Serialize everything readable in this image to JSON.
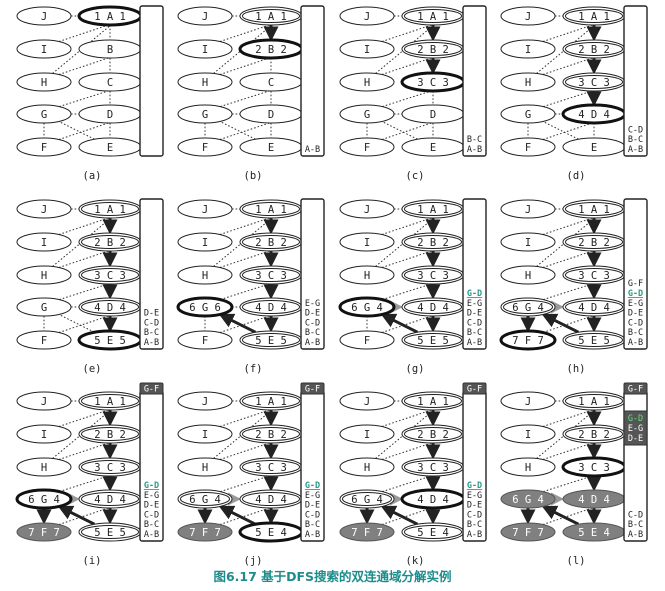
{
  "caption": "图6.17 基于DFS搜索的双连通域分解实例",
  "colors": {
    "accent": "#2b9a8a",
    "gray_fill": "#808080",
    "text": "#222222",
    "caption": "#1e8c8c"
  },
  "node_letters": [
    "J",
    "I",
    "H",
    "G",
    "F",
    "A",
    "B",
    "C",
    "D",
    "E"
  ],
  "panels": [
    {
      "label": "(a)",
      "nodes": {
        "A": "1 A 1"
      },
      "heavy": [
        "A"
      ],
      "double": [],
      "gray": [],
      "tree": [],
      "back": [],
      "stack": [],
      "stack_hi": [],
      "extra": null
    },
    {
      "label": "(b)",
      "nodes": {
        "A": "1 A 1",
        "B": "2 B 2"
      },
      "heavy": [
        "B"
      ],
      "double": [
        "A"
      ],
      "gray": [],
      "tree": [
        [
          "A",
          "B"
        ]
      ],
      "back": [],
      "stack": [
        "A-B"
      ],
      "stack_hi": [],
      "extra": null
    },
    {
      "label": "(c)",
      "nodes": {
        "A": "1 A 1",
        "B": "2 B 2",
        "C": "3 C 3"
      },
      "heavy": [
        "C"
      ],
      "double": [
        "A",
        "B"
      ],
      "gray": [],
      "tree": [
        [
          "A",
          "B"
        ],
        [
          "B",
          "C"
        ]
      ],
      "back": [],
      "stack": [
        "B-C",
        "A-B"
      ],
      "stack_hi": [],
      "extra": null
    },
    {
      "label": "(d)",
      "nodes": {
        "A": "1 A 1",
        "B": "2 B 2",
        "C": "3 C 3",
        "D": "4 D 4"
      },
      "heavy": [
        "D"
      ],
      "double": [
        "A",
        "B",
        "C"
      ],
      "gray": [],
      "tree": [
        [
          "A",
          "B"
        ],
        [
          "B",
          "C"
        ],
        [
          "C",
          "D"
        ]
      ],
      "back": [],
      "stack": [
        "C-D",
        "B-C",
        "A-B"
      ],
      "stack_hi": [],
      "extra": null
    },
    {
      "label": "(e)",
      "nodes": {
        "A": "1 A 1",
        "B": "2 B 2",
        "C": "3 C 3",
        "D": "4 D 4",
        "E": "5 E 5"
      },
      "heavy": [
        "E"
      ],
      "double": [
        "A",
        "B",
        "C",
        "D"
      ],
      "gray": [],
      "tree": [
        [
          "A",
          "B"
        ],
        [
          "B",
          "C"
        ],
        [
          "C",
          "D"
        ],
        [
          "D",
          "E"
        ]
      ],
      "back": [],
      "stack": [
        "D-E",
        "C-D",
        "B-C",
        "A-B"
      ],
      "stack_hi": [],
      "extra": null
    },
    {
      "label": "(f)",
      "nodes": {
        "A": "1 A 1",
        "B": "2 B 2",
        "C": "3 C 3",
        "D": "4 D 4",
        "E": "5 E 5",
        "G": "6 G 6"
      },
      "heavy": [
        "G"
      ],
      "double": [
        "A",
        "B",
        "C",
        "D",
        "E"
      ],
      "gray": [],
      "tree": [
        [
          "A",
          "B"
        ],
        [
          "B",
          "C"
        ],
        [
          "C",
          "D"
        ],
        [
          "D",
          "E"
        ],
        [
          "E",
          "G"
        ]
      ],
      "back": [],
      "stack": [
        "E-G",
        "D-E",
        "C-D",
        "B-C",
        "A-B"
      ],
      "stack_hi": [],
      "extra": null
    },
    {
      "label": "(g)",
      "nodes": {
        "A": "1 A 1",
        "B": "2 B 2",
        "C": "3 C 3",
        "D": "4 D 4",
        "E": "5 E 5",
        "G": "6 G 4"
      },
      "heavy": [
        "G"
      ],
      "double": [
        "A",
        "B",
        "C",
        "D",
        "E"
      ],
      "gray": [],
      "tree": [
        [
          "A",
          "B"
        ],
        [
          "B",
          "C"
        ],
        [
          "C",
          "D"
        ],
        [
          "D",
          "E"
        ],
        [
          "E",
          "G"
        ]
      ],
      "back": [
        [
          "G",
          "D"
        ]
      ],
      "stack": [
        "G-D",
        "E-G",
        "D-E",
        "C-D",
        "B-C",
        "A-B"
      ],
      "stack_hi": [
        "G-D"
      ],
      "extra": null
    },
    {
      "label": "(h)",
      "nodes": {
        "A": "1 A 1",
        "B": "2 B 2",
        "C": "3 C 3",
        "D": "4 D 4",
        "E": "5 E 5",
        "G": "6 G 4",
        "F": "7 F 7"
      },
      "heavy": [
        "F"
      ],
      "double": [
        "A",
        "B",
        "C",
        "D",
        "E",
        "G"
      ],
      "gray": [],
      "tree": [
        [
          "A",
          "B"
        ],
        [
          "B",
          "C"
        ],
        [
          "C",
          "D"
        ],
        [
          "D",
          "E"
        ],
        [
          "E",
          "G"
        ],
        [
          "G",
          "F"
        ]
      ],
      "back": [
        [
          "G",
          "D"
        ]
      ],
      "stack": [
        "G-F",
        "G-D",
        "E-G",
        "D-E",
        "C-D",
        "B-C",
        "A-B"
      ],
      "stack_hi": [
        "G-D"
      ],
      "extra": null
    },
    {
      "label": "(i)",
      "nodes": {
        "A": "1 A 1",
        "B": "2 B 2",
        "C": "3 C 3",
        "D": "4 D 4",
        "E": "5 E 5",
        "G": "6 G 4",
        "F": "7 F 7"
      },
      "heavy": [
        "G"
      ],
      "double": [
        "A",
        "B",
        "C",
        "D",
        "E"
      ],
      "gray": [
        "F"
      ],
      "tree": [
        [
          "A",
          "B"
        ],
        [
          "B",
          "C"
        ],
        [
          "C",
          "D"
        ],
        [
          "D",
          "E"
        ],
        [
          "E",
          "G"
        ],
        [
          "G",
          "F"
        ]
      ],
      "back": [
        [
          "G",
          "D"
        ]
      ],
      "stack": [
        "G-D",
        "E-G",
        "D-E",
        "C-D",
        "B-C",
        "A-B"
      ],
      "stack_hi": [
        "G-D"
      ],
      "extra": [
        "G-F"
      ]
    },
    {
      "label": "(j)",
      "nodes": {
        "A": "1 A 1",
        "B": "2 B 2",
        "C": "3 C 3",
        "D": "4 D 4",
        "E": "5 E 4",
        "G": "6 G 4",
        "F": "7 F 7"
      },
      "heavy": [
        "E"
      ],
      "double": [
        "A",
        "B",
        "C",
        "D",
        "G"
      ],
      "gray": [
        "F"
      ],
      "tree": [
        [
          "A",
          "B"
        ],
        [
          "B",
          "C"
        ],
        [
          "C",
          "D"
        ],
        [
          "D",
          "E"
        ],
        [
          "E",
          "G"
        ],
        [
          "G",
          "F"
        ]
      ],
      "back": [
        [
          "G",
          "D"
        ]
      ],
      "stack": [
        "G-D",
        "E-G",
        "D-E",
        "C-D",
        "B-C",
        "A-B"
      ],
      "stack_hi": [
        "G-D"
      ],
      "extra": [
        "G-F"
      ]
    },
    {
      "label": "(k)",
      "nodes": {
        "A": "1 A 1",
        "B": "2 B 2",
        "C": "3 C 3",
        "D": "4 D 4",
        "E": "5 E 4",
        "G": "6 G 4",
        "F": "7 F 7"
      },
      "heavy": [
        "D"
      ],
      "double": [
        "A",
        "B",
        "C",
        "E",
        "G"
      ],
      "gray": [
        "F"
      ],
      "tree": [
        [
          "A",
          "B"
        ],
        [
          "B",
          "C"
        ],
        [
          "C",
          "D"
        ],
        [
          "D",
          "E"
        ],
        [
          "E",
          "G"
        ],
        [
          "G",
          "F"
        ]
      ],
      "back": [
        [
          "G",
          "D"
        ]
      ],
      "stack": [
        "G-D",
        "E-G",
        "D-E",
        "C-D",
        "B-C",
        "A-B"
      ],
      "stack_hi": [
        "G-D"
      ],
      "extra": [
        "G-F"
      ]
    },
    {
      "label": "(l)",
      "nodes": {
        "A": "1 A 1",
        "B": "2 B 2",
        "C": "3 C 3",
        "D": "4 D 4",
        "E": "5 E 4",
        "G": "6 G 4",
        "F": "7 F 7"
      },
      "heavy": [
        "C"
      ],
      "double": [
        "A",
        "B"
      ],
      "gray": [
        "D",
        "E",
        "G",
        "F"
      ],
      "tree": [
        [
          "A",
          "B"
        ],
        [
          "B",
          "C"
        ],
        [
          "C",
          "D"
        ],
        [
          "D",
          "E"
        ],
        [
          "E",
          "G"
        ],
        [
          "G",
          "F"
        ]
      ],
      "back": [
        [
          "G",
          "D"
        ]
      ],
      "stack": [
        "C-D",
        "B-C",
        "A-B"
      ],
      "stack_hi": [],
      "extra": [
        "G-F"
      ],
      "extra2": [
        "G-D",
        "E-G",
        "D-E"
      ]
    }
  ]
}
